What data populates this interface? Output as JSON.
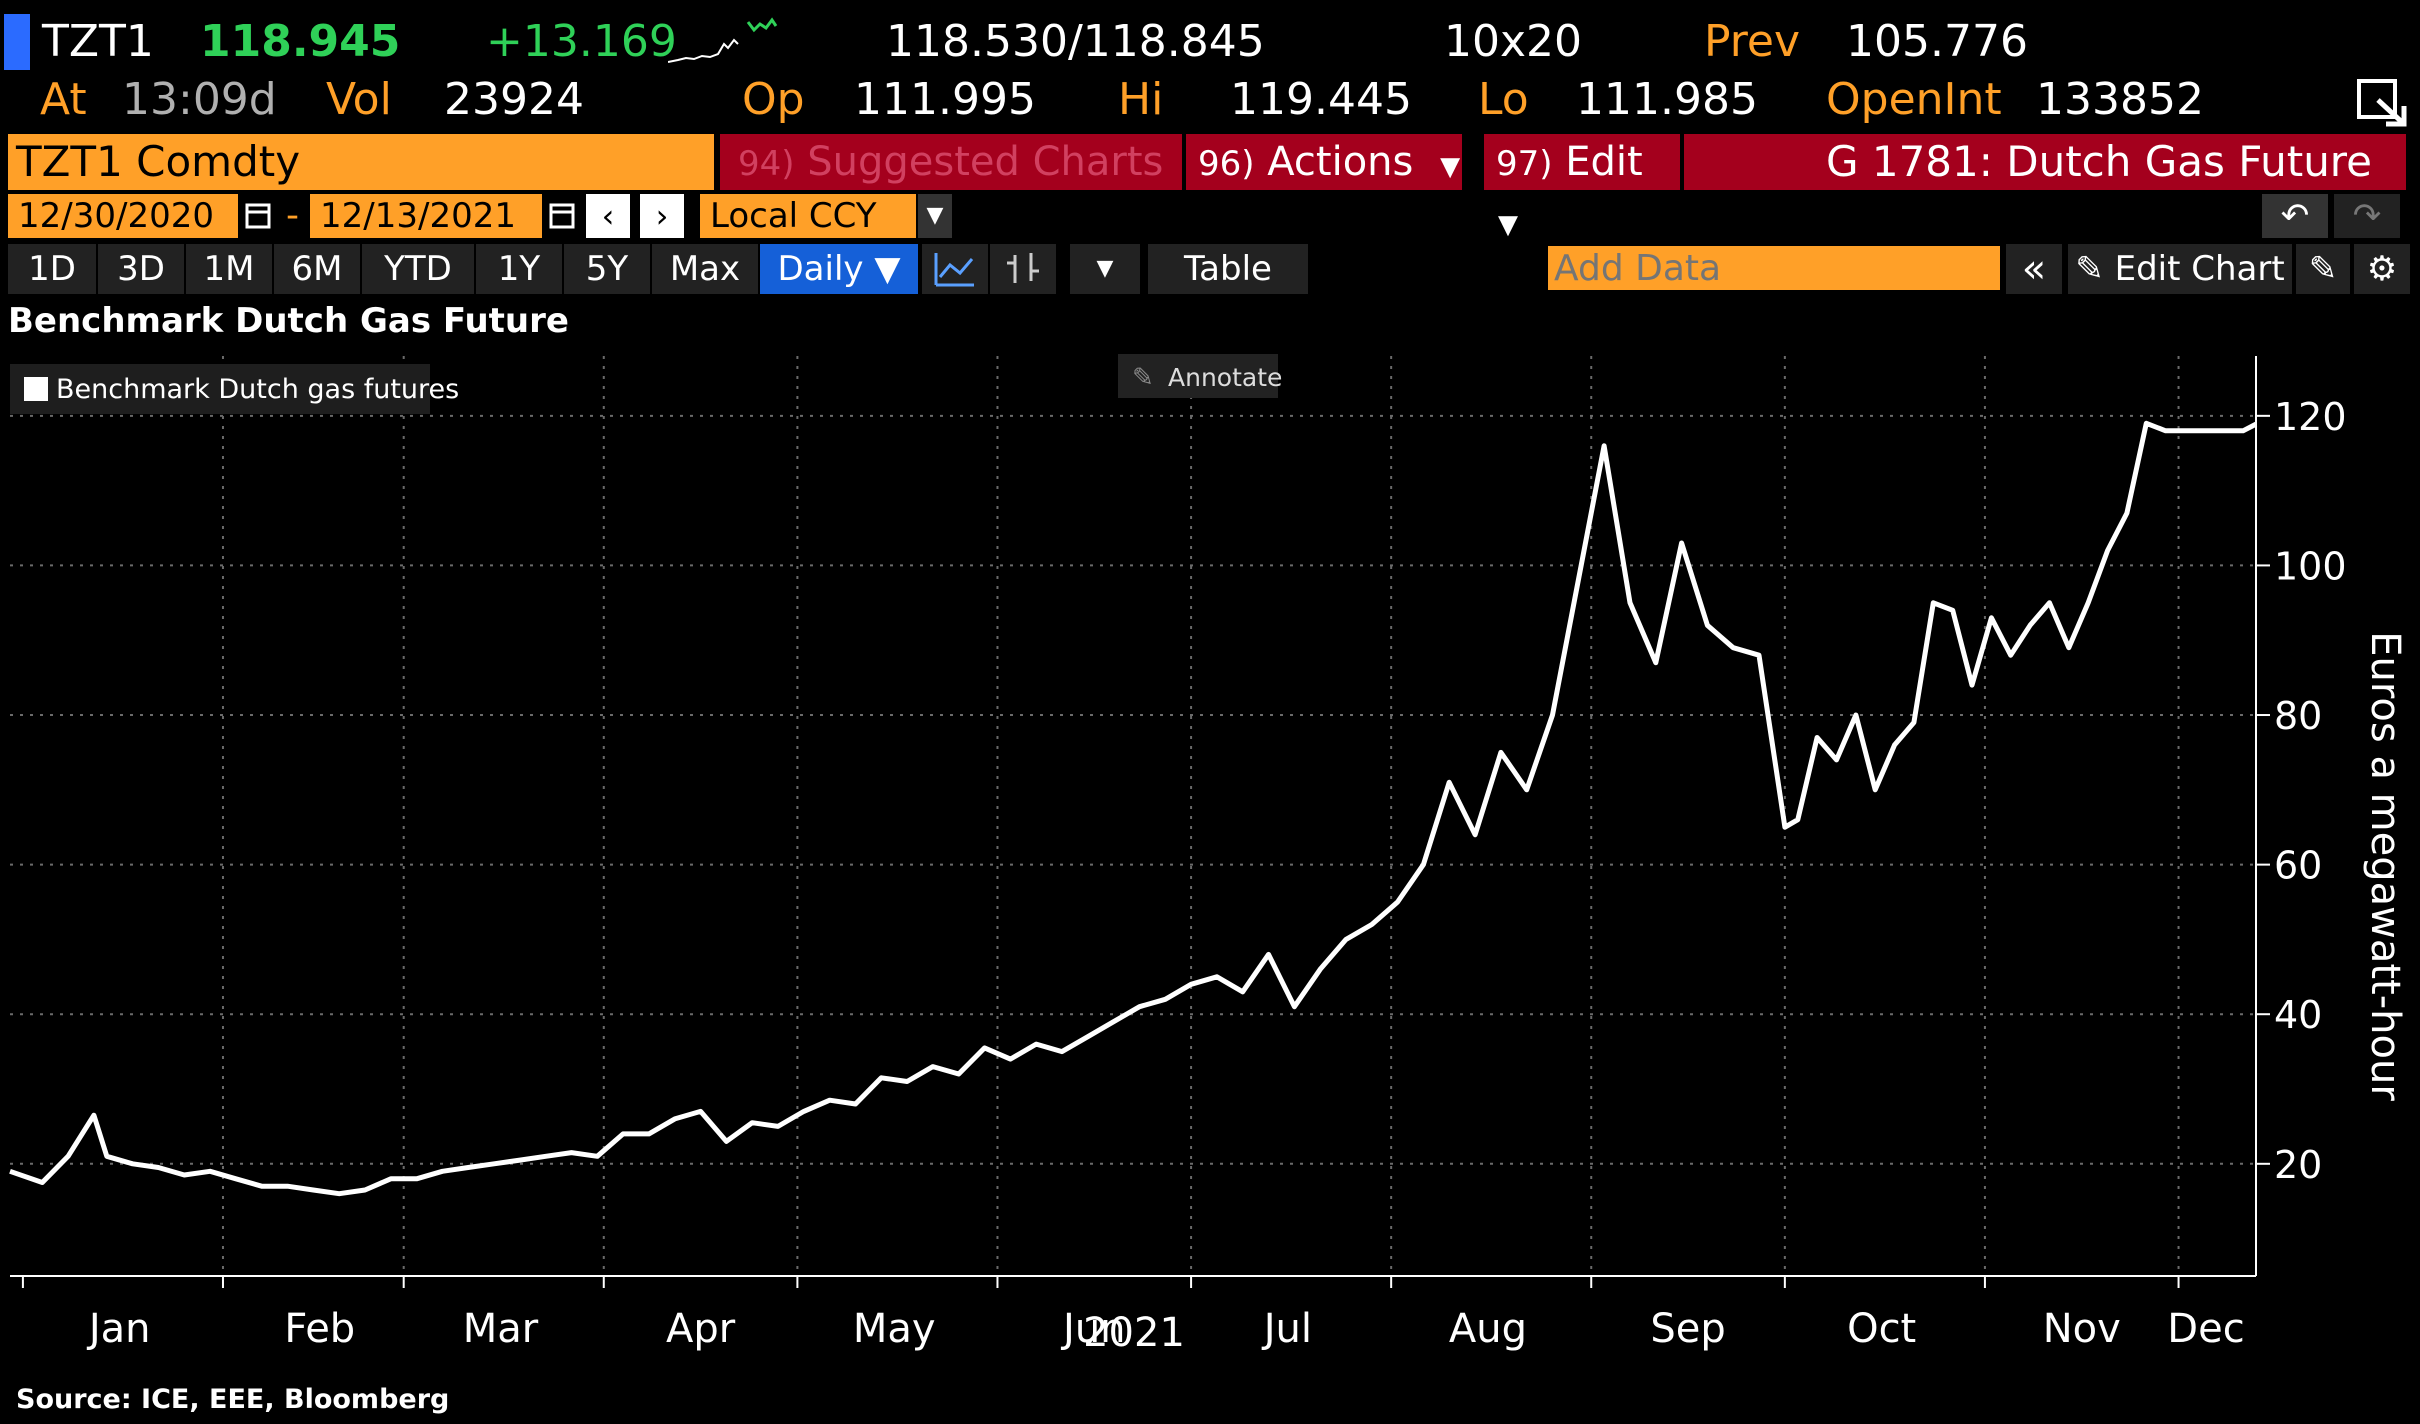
{
  "header": {
    "ticker": "TZT1",
    "last": "118.945",
    "change": "+13.169",
    "bid_ask": "118.530/118.845",
    "size": "10x20",
    "prev_label": "Prev",
    "prev_value": "105.776",
    "at_label": "At",
    "at_value": "13:09d",
    "vol_label": "Vol",
    "vol_value": "23924",
    "op_label": "Op",
    "op_value": "111.995",
    "hi_label": "Hi",
    "hi_value": "119.445",
    "lo_label": "Lo",
    "lo_value": "111.985",
    "openint_label": "OpenInt",
    "openint_value": "133852"
  },
  "toolbar": {
    "security": "TZT1 Comdty",
    "suggested_num": "94)",
    "suggested_label": "Suggested Charts",
    "actions_num": "96)",
    "actions_label": "Actions",
    "edit_num": "97)",
    "edit_label": "Edit",
    "title_right": "G 1781: Dutch Gas Future",
    "start_date": "12/30/2020",
    "end_date": "12/13/2021",
    "date_sep": "-",
    "currency": "Local CCY",
    "ranges": [
      "1D",
      "3D",
      "1M",
      "6M",
      "YTD",
      "1Y",
      "5Y",
      "Max"
    ],
    "frequency": "Daily ▼",
    "table_label": "Table",
    "add_data_placeholder": "Add Data",
    "edit_chart_label": "Edit Chart",
    "annotate_label": "Annotate"
  },
  "chart_title": "Benchmark Dutch Gas Future",
  "source": "Source: ICE, EEE, Bloomberg",
  "chart_data": {
    "type": "line",
    "title": "Benchmark Dutch Gas Future",
    "ylabel": "Euros a megawatt-hour",
    "xlabel": "2021",
    "ylim": [
      5,
      128
    ],
    "yticks": [
      20,
      40,
      60,
      80,
      100,
      120
    ],
    "grid": true,
    "legend_position": "top-left",
    "x_tick_labels": [
      "Jan",
      "Feb",
      "Mar",
      "Apr",
      "May",
      "Jun",
      "Jul",
      "Aug",
      "Sep",
      "Oct",
      "Nov",
      "Dec"
    ],
    "series": [
      {
        "name": "Benchmark Dutch gas futures",
        "color": "#ffffff",
        "x": [
          "2020-12-30",
          "2021-01-04",
          "2021-01-08",
          "2021-01-12",
          "2021-01-14",
          "2021-01-18",
          "2021-01-22",
          "2021-01-26",
          "2021-01-30",
          "2021-02-03",
          "2021-02-07",
          "2021-02-11",
          "2021-02-15",
          "2021-02-19",
          "2021-02-23",
          "2021-02-27",
          "2021-03-03",
          "2021-03-07",
          "2021-03-11",
          "2021-03-15",
          "2021-03-19",
          "2021-03-23",
          "2021-03-27",
          "2021-03-31",
          "2021-04-04",
          "2021-04-08",
          "2021-04-12",
          "2021-04-16",
          "2021-04-20",
          "2021-04-24",
          "2021-04-28",
          "2021-05-02",
          "2021-05-06",
          "2021-05-10",
          "2021-05-14",
          "2021-05-18",
          "2021-05-22",
          "2021-05-26",
          "2021-05-30",
          "2021-06-03",
          "2021-06-07",
          "2021-06-11",
          "2021-06-15",
          "2021-06-19",
          "2021-06-23",
          "2021-06-27",
          "2021-07-01",
          "2021-07-05",
          "2021-07-09",
          "2021-07-13",
          "2021-07-17",
          "2021-07-21",
          "2021-07-25",
          "2021-07-29",
          "2021-08-02",
          "2021-08-06",
          "2021-08-10",
          "2021-08-14",
          "2021-08-18",
          "2021-08-22",
          "2021-08-26",
          "2021-08-30",
          "2021-09-03",
          "2021-09-07",
          "2021-09-11",
          "2021-09-15",
          "2021-09-19",
          "2021-09-23",
          "2021-09-27",
          "2021-10-01",
          "2021-10-03",
          "2021-10-06",
          "2021-10-09",
          "2021-10-12",
          "2021-10-15",
          "2021-10-18",
          "2021-10-21",
          "2021-10-24",
          "2021-10-27",
          "2021-10-30",
          "2021-11-02",
          "2021-11-05",
          "2021-11-08",
          "2021-11-11",
          "2021-11-14",
          "2021-11-17",
          "2021-11-20",
          "2021-11-23",
          "2021-11-26",
          "2021-11-29",
          "2021-12-02",
          "2021-12-05",
          "2021-12-08",
          "2021-12-11",
          "2021-12-13"
        ],
        "values": [
          19,
          17.5,
          21,
          26.5,
          21,
          20,
          19.5,
          18.5,
          19,
          18,
          17,
          17,
          16.5,
          16,
          16.5,
          18,
          18,
          19,
          19.5,
          20,
          20.5,
          21,
          21.5,
          21,
          24,
          24,
          26,
          27,
          23,
          25.5,
          25,
          27,
          28.5,
          28,
          31.5,
          31,
          33,
          32,
          35.5,
          34,
          36,
          35,
          37,
          39,
          41,
          42,
          44,
          45,
          43,
          48,
          41,
          46,
          50,
          52,
          55,
          60,
          71,
          64,
          75,
          70,
          80,
          98,
          116,
          95,
          87,
          103,
          92,
          89,
          88,
          65,
          66,
          77,
          74,
          80,
          70,
          76,
          79,
          95,
          94,
          84,
          93,
          88,
          92,
          95,
          89,
          95,
          102,
          107,
          119,
          118,
          118,
          118,
          118,
          118,
          118.9
        ]
      }
    ]
  }
}
